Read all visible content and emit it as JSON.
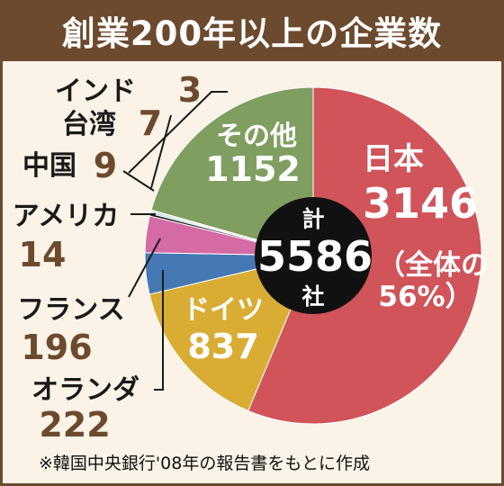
{
  "title": "創業200年以上の企業数",
  "source_note": "※韓国中央銀行'08年の報告書をもとに作成",
  "center": {
    "top": "計",
    "value": "5586",
    "bottom": "社"
  },
  "colors": {
    "japan": "#d0545a",
    "germany": "#d9ad34",
    "netherlands": "#4679b4",
    "france": "#d56ba4",
    "usa": "#1c1c1c",
    "china": "#8dc4cf",
    "taiwan": "#5fa2b2",
    "india": "#4d8693",
    "other": "#7f9e60",
    "label_dark": "#1a1a1a",
    "label_value": "#6b4a2e",
    "title_bg": "#6b4a2e"
  },
  "chart_data": {
    "type": "pie",
    "title": "創業200年以上の企業数",
    "total": 5586,
    "slices": [
      {
        "key": "japan",
        "label": "日本",
        "value": 3146,
        "note": "（全体の56%）"
      },
      {
        "key": "germany",
        "label": "ドイツ",
        "value": 837
      },
      {
        "key": "netherlands",
        "label": "オランダ",
        "value": 222
      },
      {
        "key": "france",
        "label": "フランス",
        "value": 196
      },
      {
        "key": "usa",
        "label": "アメリカ",
        "value": 14
      },
      {
        "key": "china",
        "label": "中国",
        "value": 9
      },
      {
        "key": "taiwan",
        "label": "台湾",
        "value": 7
      },
      {
        "key": "india",
        "label": "インド",
        "value": 3
      },
      {
        "key": "other",
        "label": "その他",
        "value": 1152
      }
    ],
    "note_parts": [
      "（全体の",
      "56%）"
    ]
  }
}
